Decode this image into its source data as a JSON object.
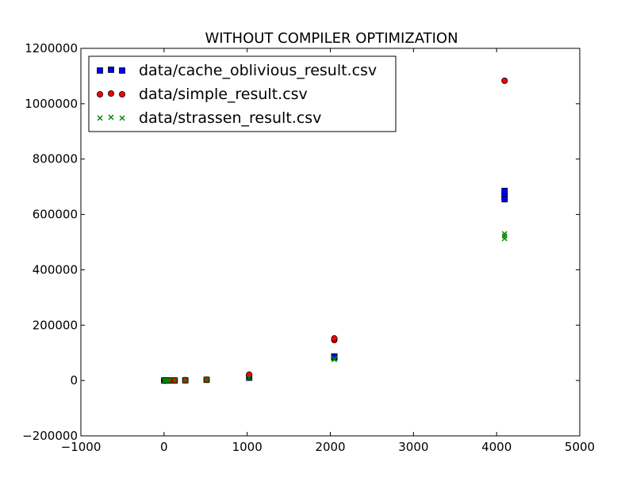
{
  "chart_data": {
    "type": "scatter",
    "title": "WITHOUT COMPILER OPTIMIZATION",
    "xlabel": "",
    "ylabel": "",
    "xlim": [
      -1000,
      5000
    ],
    "ylim": [
      -200000,
      1200000
    ],
    "x_ticks": [
      -1000,
      0,
      1000,
      2000,
      3000,
      4000,
      5000
    ],
    "y_ticks": [
      -200000,
      0,
      200000,
      400000,
      600000,
      800000,
      1000000,
      1200000
    ],
    "grid": false,
    "legend_position": "top-left",
    "series": [
      {
        "name": "data/cache_oblivious_result.csv",
        "marker": "square",
        "color": "#0000ff",
        "points": [
          [
            2,
            0
          ],
          [
            4,
            0
          ],
          [
            8,
            0
          ],
          [
            16,
            0
          ],
          [
            32,
            0
          ],
          [
            64,
            0
          ],
          [
            128,
            100
          ],
          [
            256,
            700
          ],
          [
            512,
            2500
          ],
          [
            1024,
            10000
          ],
          [
            2048,
            83000
          ],
          [
            2048,
            85000
          ],
          [
            2048,
            87000
          ],
          [
            4096,
            655000
          ],
          [
            4096,
            665000
          ],
          [
            4096,
            675000
          ],
          [
            4096,
            685000
          ]
        ]
      },
      {
        "name": "data/simple_result.csv",
        "marker": "circle",
        "color": "#ff0000",
        "points": [
          [
            2,
            0
          ],
          [
            4,
            0
          ],
          [
            8,
            0
          ],
          [
            16,
            0
          ],
          [
            32,
            0
          ],
          [
            64,
            0
          ],
          [
            128,
            300
          ],
          [
            256,
            1500
          ],
          [
            512,
            3000
          ],
          [
            1024,
            18000
          ],
          [
            1024,
            21000
          ],
          [
            2048,
            146000
          ],
          [
            2048,
            152000
          ],
          [
            4096,
            1083000
          ]
        ]
      },
      {
        "name": "data/strassen_result.csv",
        "marker": "x",
        "color": "#008000",
        "points": [
          [
            2,
            0
          ],
          [
            4,
            0
          ],
          [
            8,
            0
          ],
          [
            16,
            0
          ],
          [
            32,
            0
          ],
          [
            64,
            0
          ],
          [
            128,
            200
          ],
          [
            256,
            800
          ],
          [
            512,
            2000
          ],
          [
            1024,
            9000
          ],
          [
            2048,
            76000
          ],
          [
            2048,
            80000
          ],
          [
            4096,
            513000
          ],
          [
            4096,
            522000
          ],
          [
            4096,
            530000
          ]
        ]
      }
    ]
  }
}
